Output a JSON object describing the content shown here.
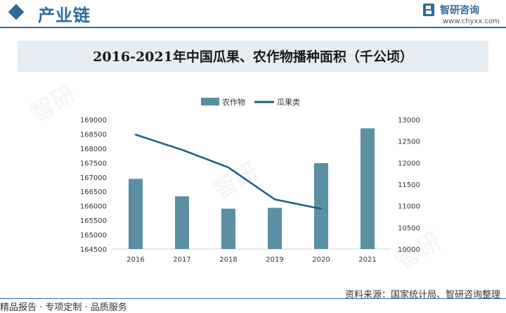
{
  "header": {
    "section_title": "产业链",
    "brand_name": "智研咨询",
    "brand_url": "www.chyxx.com"
  },
  "chart_data": {
    "type": "bar",
    "title": "2016-2021年中国瓜果、农作物播种面积（千公顷）",
    "categories": [
      "2016",
      "2017",
      "2018",
      "2019",
      "2020",
      "2021"
    ],
    "series": [
      {
        "name": "农作物",
        "type": "bar",
        "axis": "left",
        "values": [
          166939,
          166332,
          165902,
          165931,
          167487,
          168695
        ]
      },
      {
        "name": "瓜果类",
        "type": "line",
        "axis": "right",
        "values": [
          12650,
          12300,
          11890,
          11150,
          10930,
          null
        ]
      }
    ],
    "left_axis": {
      "ylim": [
        164500,
        169000
      ],
      "ticks": [
        164500,
        165000,
        165500,
        166000,
        166500,
        167000,
        167500,
        168000,
        168500,
        169000
      ]
    },
    "right_axis": {
      "ylim": [
        10000,
        13000
      ],
      "ticks": [
        10000,
        10500,
        11000,
        11500,
        12000,
        12500,
        13000
      ]
    },
    "legend": "top-center",
    "grid": false,
    "colors": {
      "bar": "#5b8fa3",
      "line": "#1d5f7f"
    }
  },
  "footer": {
    "source": "资料来源：国家统计局、智研咨询整理",
    "tagline": "精品报告 · 专项定制 · 品质服务"
  }
}
